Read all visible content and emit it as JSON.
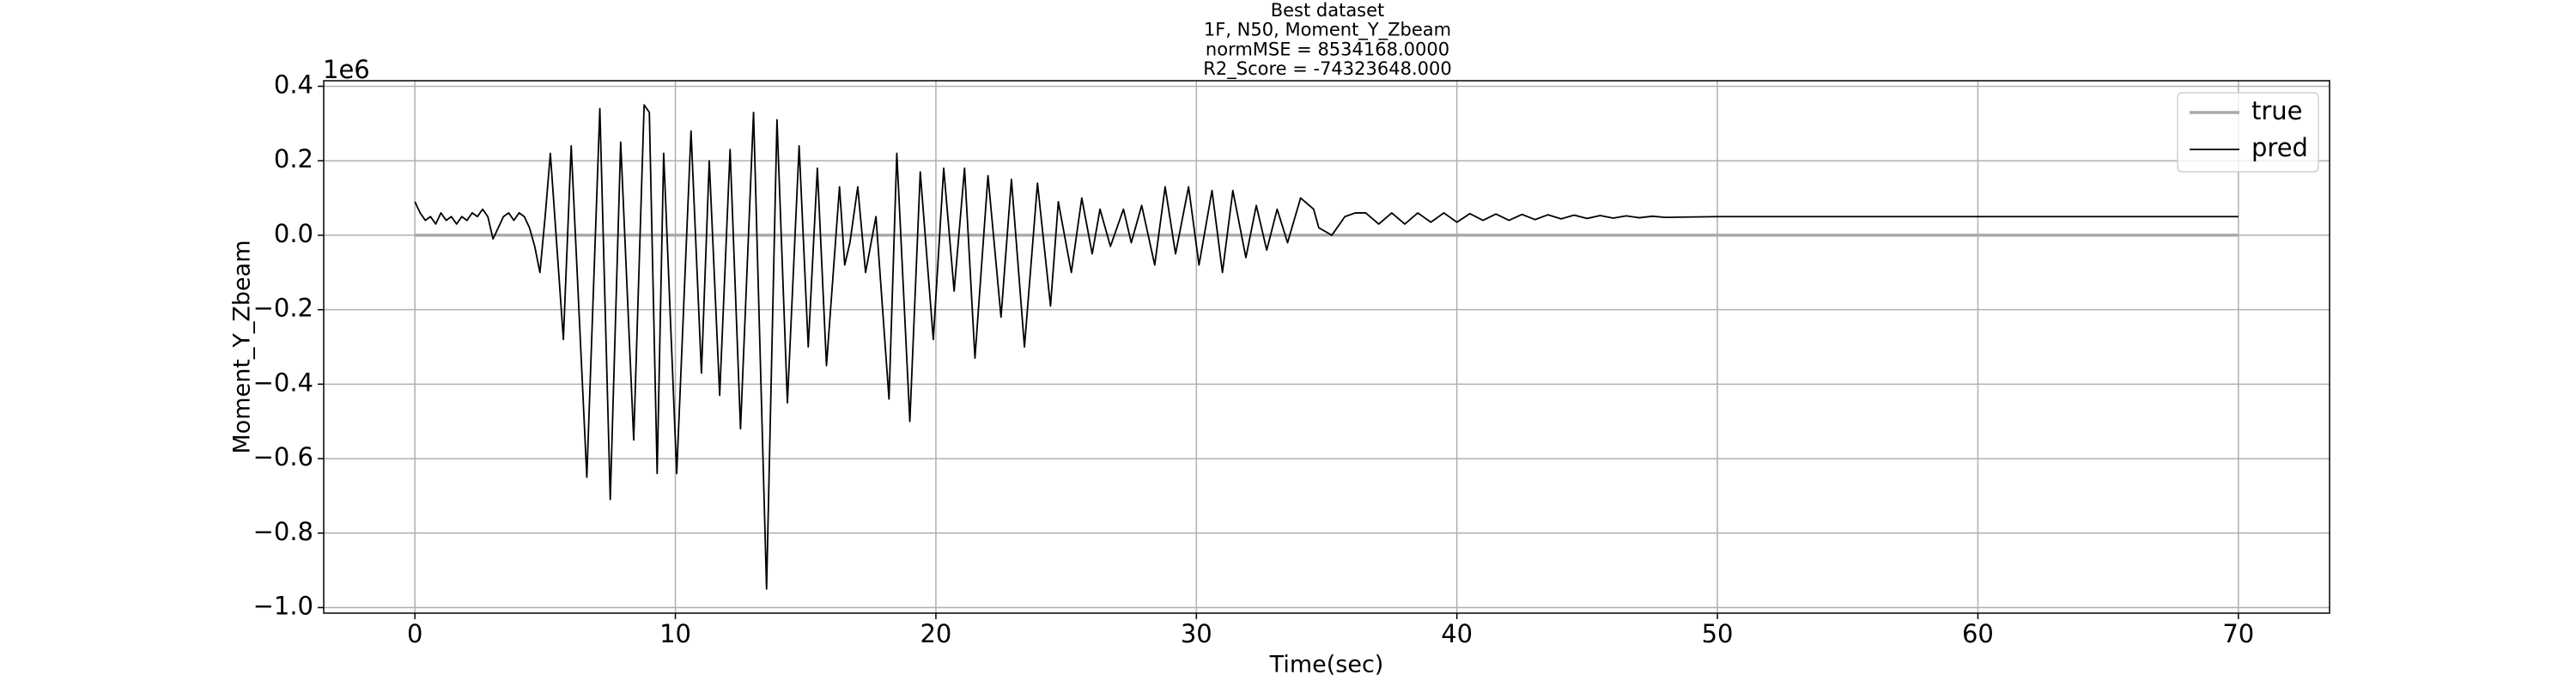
{
  "chart_data": {
    "type": "line",
    "title": [
      "Best dataset",
      "1F, N50, Moment_Y_Zbeam",
      "normMSE = 8534168.0000",
      "R2_Score = -74323648.000"
    ],
    "xlabel": "Time(sec)",
    "ylabel": "Moment_Y_Zbeam",
    "y_offset_label": "1e6",
    "xlim": [
      -3.5,
      73.5
    ],
    "ylim": [
      -1.015,
      0.415
    ],
    "xticks": [
      0,
      10,
      20,
      30,
      40,
      50,
      60,
      70
    ],
    "yticks": [
      {
        "value": -1.0,
        "label": "−1.0"
      },
      {
        "value": -0.8,
        "label": "−0.8"
      },
      {
        "value": -0.6,
        "label": "−0.6"
      },
      {
        "value": -0.4,
        "label": "−0.4"
      },
      {
        "value": -0.2,
        "label": "−0.2"
      },
      {
        "value": 0.0,
        "label": "0.0"
      },
      0.2,
      0.4
    ],
    "grid": true,
    "legend": "upper right",
    "series": [
      {
        "name": "true",
        "color": "#aaaaaa",
        "x": [
          0,
          70
        ],
        "values": [
          0,
          0
        ]
      },
      {
        "name": "pred",
        "color": "#000000",
        "x": [
          0,
          0.2,
          0.4,
          0.6,
          0.8,
          1.0,
          1.2,
          1.4,
          1.6,
          1.8,
          2.0,
          2.2,
          2.4,
          2.6,
          2.8,
          3.0,
          3.2,
          3.4,
          3.6,
          3.8,
          4.0,
          4.2,
          4.4,
          4.6,
          4.8,
          5.0,
          5.2,
          5.7,
          6.0,
          6.6,
          7.1,
          7.5,
          7.9,
          8.4,
          8.8,
          9.0,
          9.3,
          9.55,
          10.05,
          10.6,
          11.0,
          11.3,
          11.7,
          12.1,
          12.5,
          13.0,
          13.5,
          13.9,
          14.3,
          14.75,
          15.1,
          15.45,
          15.8,
          16.3,
          16.5,
          16.7,
          17.0,
          17.3,
          17.7,
          18.2,
          18.5,
          19.0,
          19.4,
          19.9,
          20.3,
          20.7,
          21.1,
          21.5,
          22.0,
          22.5,
          22.9,
          23.4,
          23.9,
          24.4,
          24.7,
          25.2,
          25.6,
          26.0,
          26.3,
          26.7,
          27.2,
          27.5,
          27.9,
          28.4,
          28.8,
          29.2,
          29.7,
          30.1,
          30.6,
          31.0,
          31.4,
          31.9,
          32.3,
          32.7,
          33.1,
          33.5,
          34.0,
          34.5,
          34.7,
          35.2,
          35.7,
          36.1,
          36.5,
          37.0,
          37.5,
          38.0,
          38.5,
          39.0,
          39.5,
          40.0,
          40.5,
          41.0,
          41.5,
          42.0,
          42.5,
          43.0,
          43.5,
          44.0,
          44.5,
          45.0,
          45.5,
          46.0,
          46.5,
          47.0,
          47.5,
          48.0,
          50,
          60,
          70
        ],
        "values": [
          0.09,
          0.06,
          0.04,
          0.05,
          0.03,
          0.06,
          0.04,
          0.05,
          0.03,
          0.05,
          0.04,
          0.06,
          0.05,
          0.07,
          0.05,
          -0.01,
          0.02,
          0.05,
          0.06,
          0.04,
          0.06,
          0.05,
          0.02,
          -0.03,
          -0.1,
          0.05,
          0.22,
          -0.28,
          0.24,
          -0.65,
          0.34,
          -0.71,
          0.25,
          -0.55,
          0.35,
          0.33,
          -0.64,
          0.22,
          -0.64,
          0.28,
          -0.37,
          0.2,
          -0.43,
          0.23,
          -0.52,
          0.33,
          -0.95,
          0.31,
          -0.45,
          0.24,
          -0.3,
          0.18,
          -0.35,
          0.13,
          -0.08,
          -0.02,
          0.13,
          -0.1,
          0.05,
          -0.44,
          0.22,
          -0.5,
          0.17,
          -0.28,
          0.18,
          -0.15,
          0.18,
          -0.33,
          0.16,
          -0.22,
          0.15,
          -0.3,
          0.14,
          -0.19,
          0.09,
          -0.1,
          0.1,
          -0.05,
          0.07,
          -0.03,
          0.07,
          -0.02,
          0.08,
          -0.08,
          0.13,
          -0.05,
          0.13,
          -0.08,
          0.12,
          -0.1,
          0.12,
          -0.06,
          0.08,
          -0.04,
          0.07,
          -0.02,
          0.1,
          0.07,
          0.02,
          0.0,
          0.05,
          0.06,
          0.06,
          0.03,
          0.06,
          0.03,
          0.06,
          0.035,
          0.06,
          0.035,
          0.058,
          0.04,
          0.057,
          0.04,
          0.056,
          0.042,
          0.055,
          0.044,
          0.054,
          0.045,
          0.053,
          0.046,
          0.052,
          0.047,
          0.051,
          0.048,
          0.05,
          0.05,
          0.05
        ]
      }
    ]
  }
}
